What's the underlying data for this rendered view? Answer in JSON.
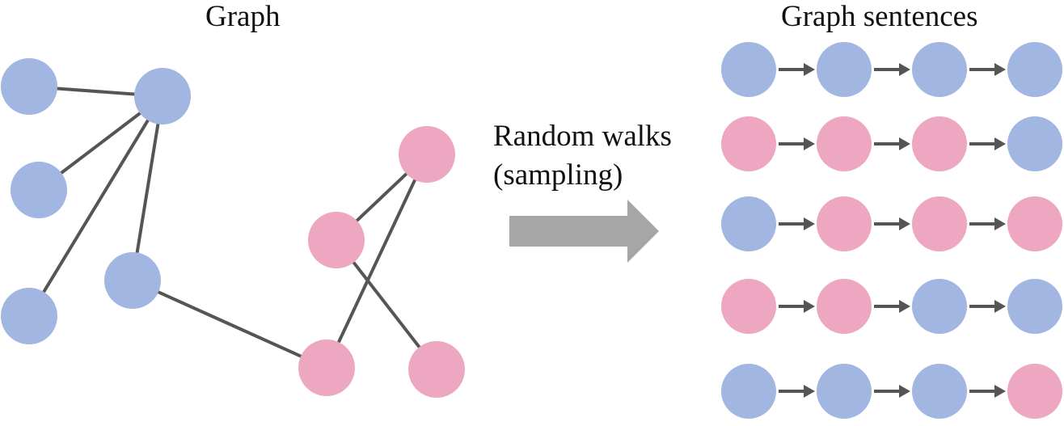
{
  "titles": {
    "graph": "Graph",
    "sentences": "Graph sentences"
  },
  "arrow_label": {
    "line1": "Random walks",
    "line2": "(sampling)"
  },
  "colors": {
    "blue": "#a1b6e0",
    "pink": "#eda7c1",
    "edge": "#555555",
    "arrow": "#a6a6a6",
    "chain_arrow": "#555555"
  },
  "graph": {
    "nodes": [
      {
        "id": "b1",
        "color": "blue"
      },
      {
        "id": "b2",
        "color": "blue"
      },
      {
        "id": "b3",
        "color": "blue"
      },
      {
        "id": "b4",
        "color": "blue"
      },
      {
        "id": "b5",
        "color": "blue"
      },
      {
        "id": "p1",
        "color": "pink"
      },
      {
        "id": "p2",
        "color": "pink"
      },
      {
        "id": "p3",
        "color": "pink"
      },
      {
        "id": "p4",
        "color": "pink"
      }
    ],
    "edges": [
      [
        "b1",
        "b2"
      ],
      [
        "b3",
        "b2"
      ],
      [
        "b4",
        "b2"
      ],
      [
        "b5",
        "b2"
      ],
      [
        "b5",
        "p3"
      ],
      [
        "p1",
        "p2"
      ],
      [
        "p1",
        "p3"
      ],
      [
        "p2",
        "p4"
      ]
    ]
  },
  "sentences": [
    [
      "blue",
      "blue",
      "blue",
      "blue"
    ],
    [
      "pink",
      "pink",
      "pink",
      "blue"
    ],
    [
      "blue",
      "pink",
      "pink",
      "pink"
    ],
    [
      "pink",
      "pink",
      "blue",
      "blue"
    ],
    [
      "blue",
      "blue",
      "blue",
      "pink"
    ]
  ]
}
